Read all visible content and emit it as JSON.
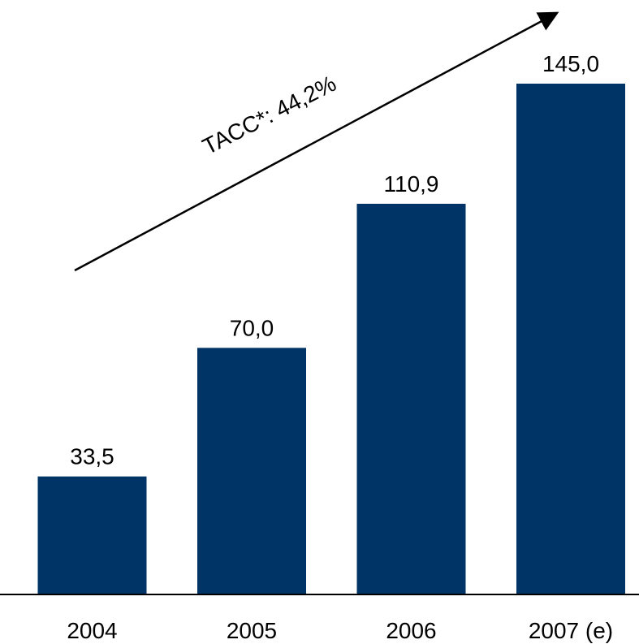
{
  "chart_data": {
    "type": "bar",
    "categories": [
      "2004",
      "2005",
      "2006",
      "2007 (e)"
    ],
    "values": [
      33.5,
      70.0,
      110.9,
      145.0
    ],
    "value_labels": [
      "33,5",
      "70,0",
      "110,9",
      "145,0"
    ],
    "title": "",
    "xlabel": "",
    "ylabel": "",
    "ylim": [
      0,
      145
    ],
    "grid": false,
    "legend": "none",
    "annotation": {
      "text": "TACC*: 44,2%",
      "kind": "upward-trend-arrow"
    },
    "colors": {
      "bar": "#003366",
      "axis": "#000000",
      "text": "#000000"
    }
  }
}
